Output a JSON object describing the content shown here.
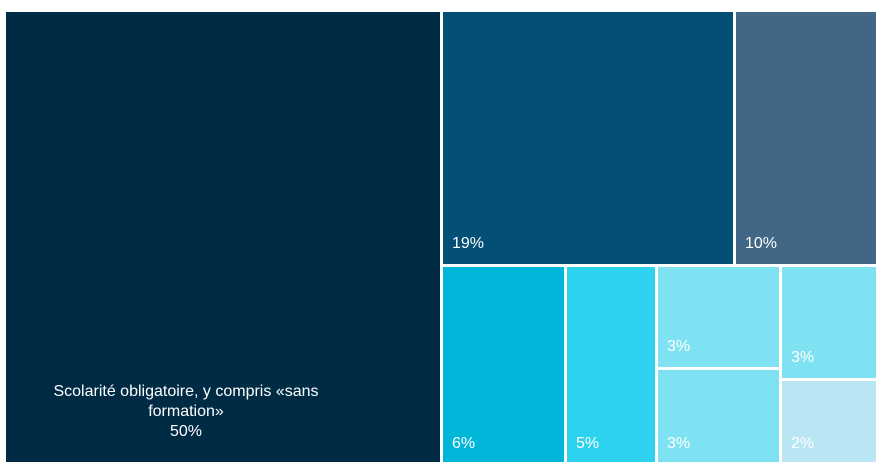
{
  "chart_data": {
    "type": "treemap",
    "title": "",
    "tiles": [
      {
        "name": "Scolarité obligatoire, y compris «sans formation»",
        "value": 50,
        "label": "50%",
        "color": "#002b45"
      },
      {
        "name": "",
        "value": 19,
        "label": "19%",
        "color": "#034f76"
      },
      {
        "name": "",
        "value": 10,
        "label": "10%",
        "color": "#426686"
      },
      {
        "name": "",
        "value": 6,
        "label": "6%",
        "color": "#00b6d8"
      },
      {
        "name": "",
        "value": 5,
        "label": "5%",
        "color": "#2dd3ee"
      },
      {
        "name": "",
        "value": 3,
        "label": "3%",
        "color": "#7fe2f3"
      },
      {
        "name": "",
        "value": 3,
        "label": "3%",
        "color": "#7fe2f3"
      },
      {
        "name": "",
        "value": 3,
        "label": "3%",
        "color": "#7fe2f3"
      },
      {
        "name": "",
        "value": 2,
        "label": "2%",
        "color": "#b8e6f3"
      }
    ]
  }
}
